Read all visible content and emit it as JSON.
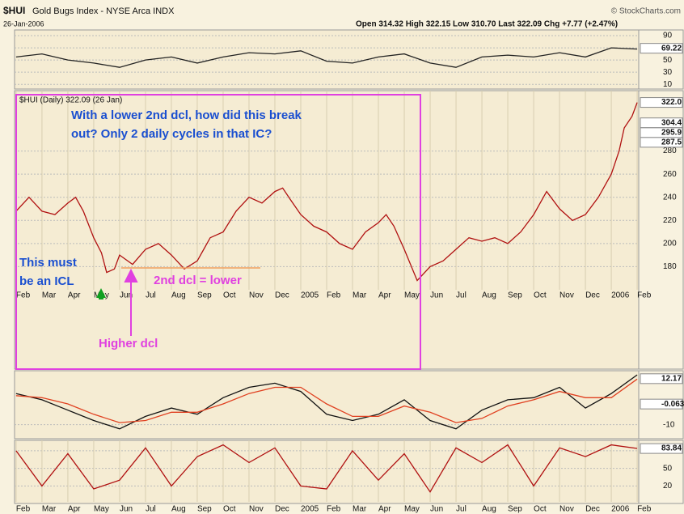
{
  "header": {
    "symbol": "$HUI",
    "name": "Gold Bugs Index - NYSE Arca INDX",
    "date": "26-Jan-2006",
    "quote": "Open 314.32  High 322.15  Low 310.70  Last 322.09  Chg +7.77 (+2.47%)",
    "source": "© StockCharts.com"
  },
  "annotations": {
    "question": [
      "With a lower 2nd dcl, how did this break",
      "out?  Only 2 daily cycles in that IC?"
    ],
    "icl": [
      "This must",
      "be an ICL"
    ],
    "lower": "2nd dcl = lower",
    "higher": "Higher dcl"
  },
  "chart_data": [
    {
      "type": "line",
      "x": [
        0,
        1,
        2,
        3,
        4,
        5,
        6,
        7,
        8,
        9,
        10,
        11,
        12,
        13,
        14,
        15,
        16,
        17,
        18,
        19,
        20,
        21,
        22,
        23,
        24
      ],
      "xlim": [
        -0.06,
        24.06
      ],
      "ylim": [
        5,
        98
      ],
      "yticks": [
        10,
        30,
        50,
        70,
        90
      ],
      "last_value": 69.22,
      "series": [
        {
          "color": "#222222",
          "values": [
            55,
            60,
            50,
            45,
            38,
            50,
            55,
            45,
            55,
            62,
            60,
            65,
            48,
            45,
            55,
            60,
            45,
            38,
            55,
            58,
            55,
            62,
            55,
            70,
            68
          ]
        }
      ]
    },
    {
      "type": "line",
      "legend": "$HUI (Daily) 322.09 (26 Jan)",
      "x": [
        0,
        0.5,
        1,
        1.5,
        2,
        2.3,
        2.6,
        3,
        3.3,
        3.5,
        3.8,
        4,
        4.5,
        5,
        5.5,
        6,
        6.5,
        7,
        7.5,
        8,
        8.5,
        9,
        9.5,
        10,
        10.3,
        10.6,
        11,
        11.5,
        12,
        12.5,
        13,
        13.5,
        14,
        14.3,
        14.6,
        15,
        15.5,
        16,
        16.5,
        17,
        17.5,
        18,
        18.5,
        19,
        19.5,
        20,
        20.5,
        21,
        21.5,
        22,
        22.5,
        23,
        23.3,
        23.5,
        23.8,
        24
      ],
      "xlim": [
        -0.06,
        24.06
      ],
      "ylim": [
        160,
        328
      ],
      "yticks": [
        180,
        200,
        220,
        240,
        260,
        280
      ],
      "last_values": [
        {
          "value": 322,
          "label": "322.0"
        },
        304.4,
        295.9,
        287.5
      ],
      "xticks": [
        {
          "value": 0,
          "label": "Feb"
        },
        {
          "value": 1,
          "label": "Mar"
        },
        {
          "value": 2,
          "label": "Apr"
        },
        {
          "value": 3,
          "label": "May"
        },
        {
          "value": 4,
          "label": "Jun"
        },
        {
          "value": 5,
          "label": "Jul"
        },
        {
          "value": 6,
          "label": "Aug"
        },
        {
          "value": 7,
          "label": "Sep"
        },
        {
          "value": 8,
          "label": "Oct"
        },
        {
          "value": 9,
          "label": "Nov"
        },
        {
          "value": 10,
          "label": "Dec"
        },
        {
          "value": 11,
          "label": "2005"
        },
        {
          "value": 12,
          "label": "Feb"
        },
        {
          "value": 13,
          "label": "Mar"
        },
        {
          "value": 14,
          "label": "Apr"
        },
        {
          "value": 15,
          "label": "May"
        },
        {
          "value": 16,
          "label": "Jun"
        },
        {
          "value": 17,
          "label": "Jul"
        },
        {
          "value": 18,
          "label": "Aug"
        },
        {
          "value": 19,
          "label": "Sep"
        },
        {
          "value": 20,
          "label": "Oct"
        },
        {
          "value": 21,
          "label": "Nov"
        },
        {
          "value": 22,
          "label": "Dec"
        },
        {
          "value": 23,
          "label": "2006"
        },
        {
          "value": 24,
          "label": "Feb"
        }
      ],
      "series": [
        {
          "color": "#b01010",
          "values": [
            228,
            240,
            228,
            225,
            235,
            240,
            228,
            205,
            192,
            175,
            178,
            190,
            182,
            195,
            200,
            190,
            178,
            185,
            205,
            210,
            228,
            240,
            235,
            245,
            248,
            238,
            225,
            215,
            210,
            200,
            195,
            210,
            218,
            225,
            215,
            195,
            168,
            180,
            185,
            195,
            205,
            202,
            205,
            200,
            210,
            225,
            245,
            230,
            220,
            225,
            240,
            260,
            280,
            300,
            310,
            322
          ]
        }
      ]
    },
    {
      "type": "line",
      "x": [
        0,
        1,
        2,
        3,
        4,
        5,
        6,
        7,
        8,
        9,
        10,
        11,
        12,
        13,
        14,
        15,
        16,
        17,
        18,
        19,
        20,
        21,
        22,
        23,
        24
      ],
      "xlim": [
        -0.06,
        24.06
      ],
      "ylim": [
        -16,
        16
      ],
      "yticks": [
        -10
      ],
      "last_values": [
        12.17,
        -0.063
      ],
      "series": [
        {
          "color": "#111111",
          "values": [
            5,
            2,
            -3,
            -8,
            -12,
            -6,
            -2,
            -5,
            3,
            8,
            10,
            6,
            -5,
            -8,
            -5,
            2,
            -8,
            -12,
            -3,
            2,
            3,
            8,
            -2,
            5,
            14
          ]
        },
        {
          "color": "#e04020",
          "values": [
            4,
            3,
            0,
            -5,
            -9,
            -8,
            -4,
            -4,
            0,
            5,
            8,
            8,
            0,
            -6,
            -6,
            -1,
            -4,
            -9,
            -7,
            -1,
            2,
            6,
            3,
            3,
            12
          ]
        }
      ]
    },
    {
      "type": "line",
      "x": [
        0,
        1,
        2,
        3,
        4,
        5,
        6,
        7,
        8,
        9,
        10,
        11,
        12,
        13,
        14,
        15,
        16,
        17,
        18,
        19,
        20,
        21,
        22,
        23,
        24
      ],
      "xlim": [
        -0.06,
        24.06
      ],
      "ylim": [
        -7,
        95
      ],
      "yticks": [
        20,
        50,
        80
      ],
      "last_value": 83.84,
      "xticks": [
        {
          "value": 0,
          "label": "Feb"
        },
        {
          "value": 1,
          "label": "Mar"
        },
        {
          "value": 2,
          "label": "Apr"
        },
        {
          "value": 3,
          "label": "May"
        },
        {
          "value": 4,
          "label": "Jun"
        },
        {
          "value": 5,
          "label": "Jul"
        },
        {
          "value": 6,
          "label": "Aug"
        },
        {
          "value": 7,
          "label": "Sep"
        },
        {
          "value": 8,
          "label": "Oct"
        },
        {
          "value": 9,
          "label": "Nov"
        },
        {
          "value": 10,
          "label": "Dec"
        },
        {
          "value": 11,
          "label": "2005"
        },
        {
          "value": 12,
          "label": "Feb"
        },
        {
          "value": 13,
          "label": "Mar"
        },
        {
          "value": 14,
          "label": "Apr"
        },
        {
          "value": 15,
          "label": "May"
        },
        {
          "value": 16,
          "label": "Jun"
        },
        {
          "value": 17,
          "label": "Jul"
        },
        {
          "value": 18,
          "label": "Aug"
        },
        {
          "value": 19,
          "label": "Sep"
        },
        {
          "value": 20,
          "label": "Oct"
        },
        {
          "value": 21,
          "label": "Nov"
        },
        {
          "value": 22,
          "label": "Dec"
        },
        {
          "value": 23,
          "label": "2006"
        },
        {
          "value": 24,
          "label": "Feb"
        }
      ],
      "series": [
        {
          "color": "#b01010",
          "values": [
            80,
            20,
            75,
            15,
            30,
            85,
            20,
            70,
            90,
            60,
            85,
            20,
            15,
            80,
            30,
            75,
            10,
            85,
            60,
            90,
            20,
            85,
            70,
            90,
            84
          ]
        }
      ]
    }
  ]
}
